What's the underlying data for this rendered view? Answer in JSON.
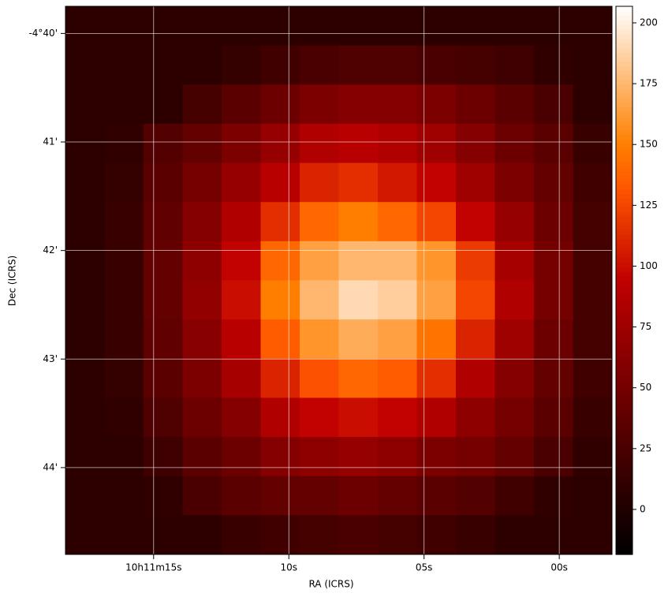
{
  "chart_data": {
    "type": "heatmap",
    "x_label": "RA (ICRS)",
    "y_label": "Dec (ICRS)",
    "colormap": "gist_heat",
    "grid": true,
    "xlim": [
      18.26,
      -1.95
    ],
    "ylim": [
      39.75,
      44.8
    ],
    "xticks": [
      {
        "value": 15,
        "label": "10h11m15s"
      },
      {
        "value": 10,
        "label": "10s"
      },
      {
        "value": 5,
        "label": "05s"
      },
      {
        "value": 0,
        "label": "00s"
      }
    ],
    "yticks": [
      {
        "value": 40,
        "label": "-4°40'"
      },
      {
        "value": 41,
        "label": "41'"
      },
      {
        "value": 42,
        "label": "42'"
      },
      {
        "value": 43,
        "label": "43'"
      },
      {
        "value": 44,
        "label": "44'"
      }
    ],
    "clim": [
      -18.5,
      206.8
    ],
    "cticks": [
      0,
      25,
      50,
      75,
      100,
      125,
      150,
      175,
      200
    ],
    "z": [
      [
        8,
        8,
        8,
        8,
        8,
        8,
        8,
        8,
        8,
        8,
        8,
        8,
        8,
        8
      ],
      [
        8,
        8,
        8,
        8,
        12,
        20,
        25,
        28,
        28,
        25,
        22,
        18,
        10,
        8
      ],
      [
        8,
        8,
        8,
        22,
        35,
        45,
        55,
        60,
        60,
        55,
        45,
        35,
        25,
        8
      ],
      [
        8,
        10,
        30,
        40,
        55,
        70,
        85,
        90,
        85,
        75,
        60,
        45,
        35,
        15
      ],
      [
        8,
        12,
        35,
        50,
        70,
        90,
        110,
        115,
        105,
        95,
        75,
        55,
        40,
        20
      ],
      [
        8,
        15,
        38,
        60,
        85,
        115,
        140,
        150,
        140,
        125,
        95,
        70,
        45,
        22
      ],
      [
        8,
        15,
        40,
        65,
        95,
        140,
        165,
        175,
        175,
        160,
        120,
        80,
        50,
        22
      ],
      [
        8,
        15,
        40,
        68,
        100,
        150,
        175,
        190,
        185,
        165,
        125,
        85,
        50,
        22
      ],
      [
        8,
        15,
        38,
        62,
        90,
        135,
        160,
        170,
        165,
        145,
        110,
        75,
        45,
        22
      ],
      [
        8,
        12,
        35,
        55,
        80,
        110,
        130,
        140,
        135,
        115,
        85,
        60,
        40,
        20
      ],
      [
        8,
        10,
        28,
        45,
        60,
        85,
        95,
        100,
        95,
        85,
        65,
        50,
        35,
        15
      ],
      [
        8,
        8,
        18,
        35,
        45,
        60,
        65,
        70,
        65,
        55,
        50,
        40,
        25,
        10
      ],
      [
        8,
        8,
        10,
        25,
        35,
        40,
        40,
        45,
        40,
        35,
        30,
        20,
        10,
        8
      ],
      [
        8,
        8,
        8,
        8,
        15,
        20,
        22,
        25,
        22,
        20,
        15,
        8,
        8,
        8
      ]
    ]
  }
}
